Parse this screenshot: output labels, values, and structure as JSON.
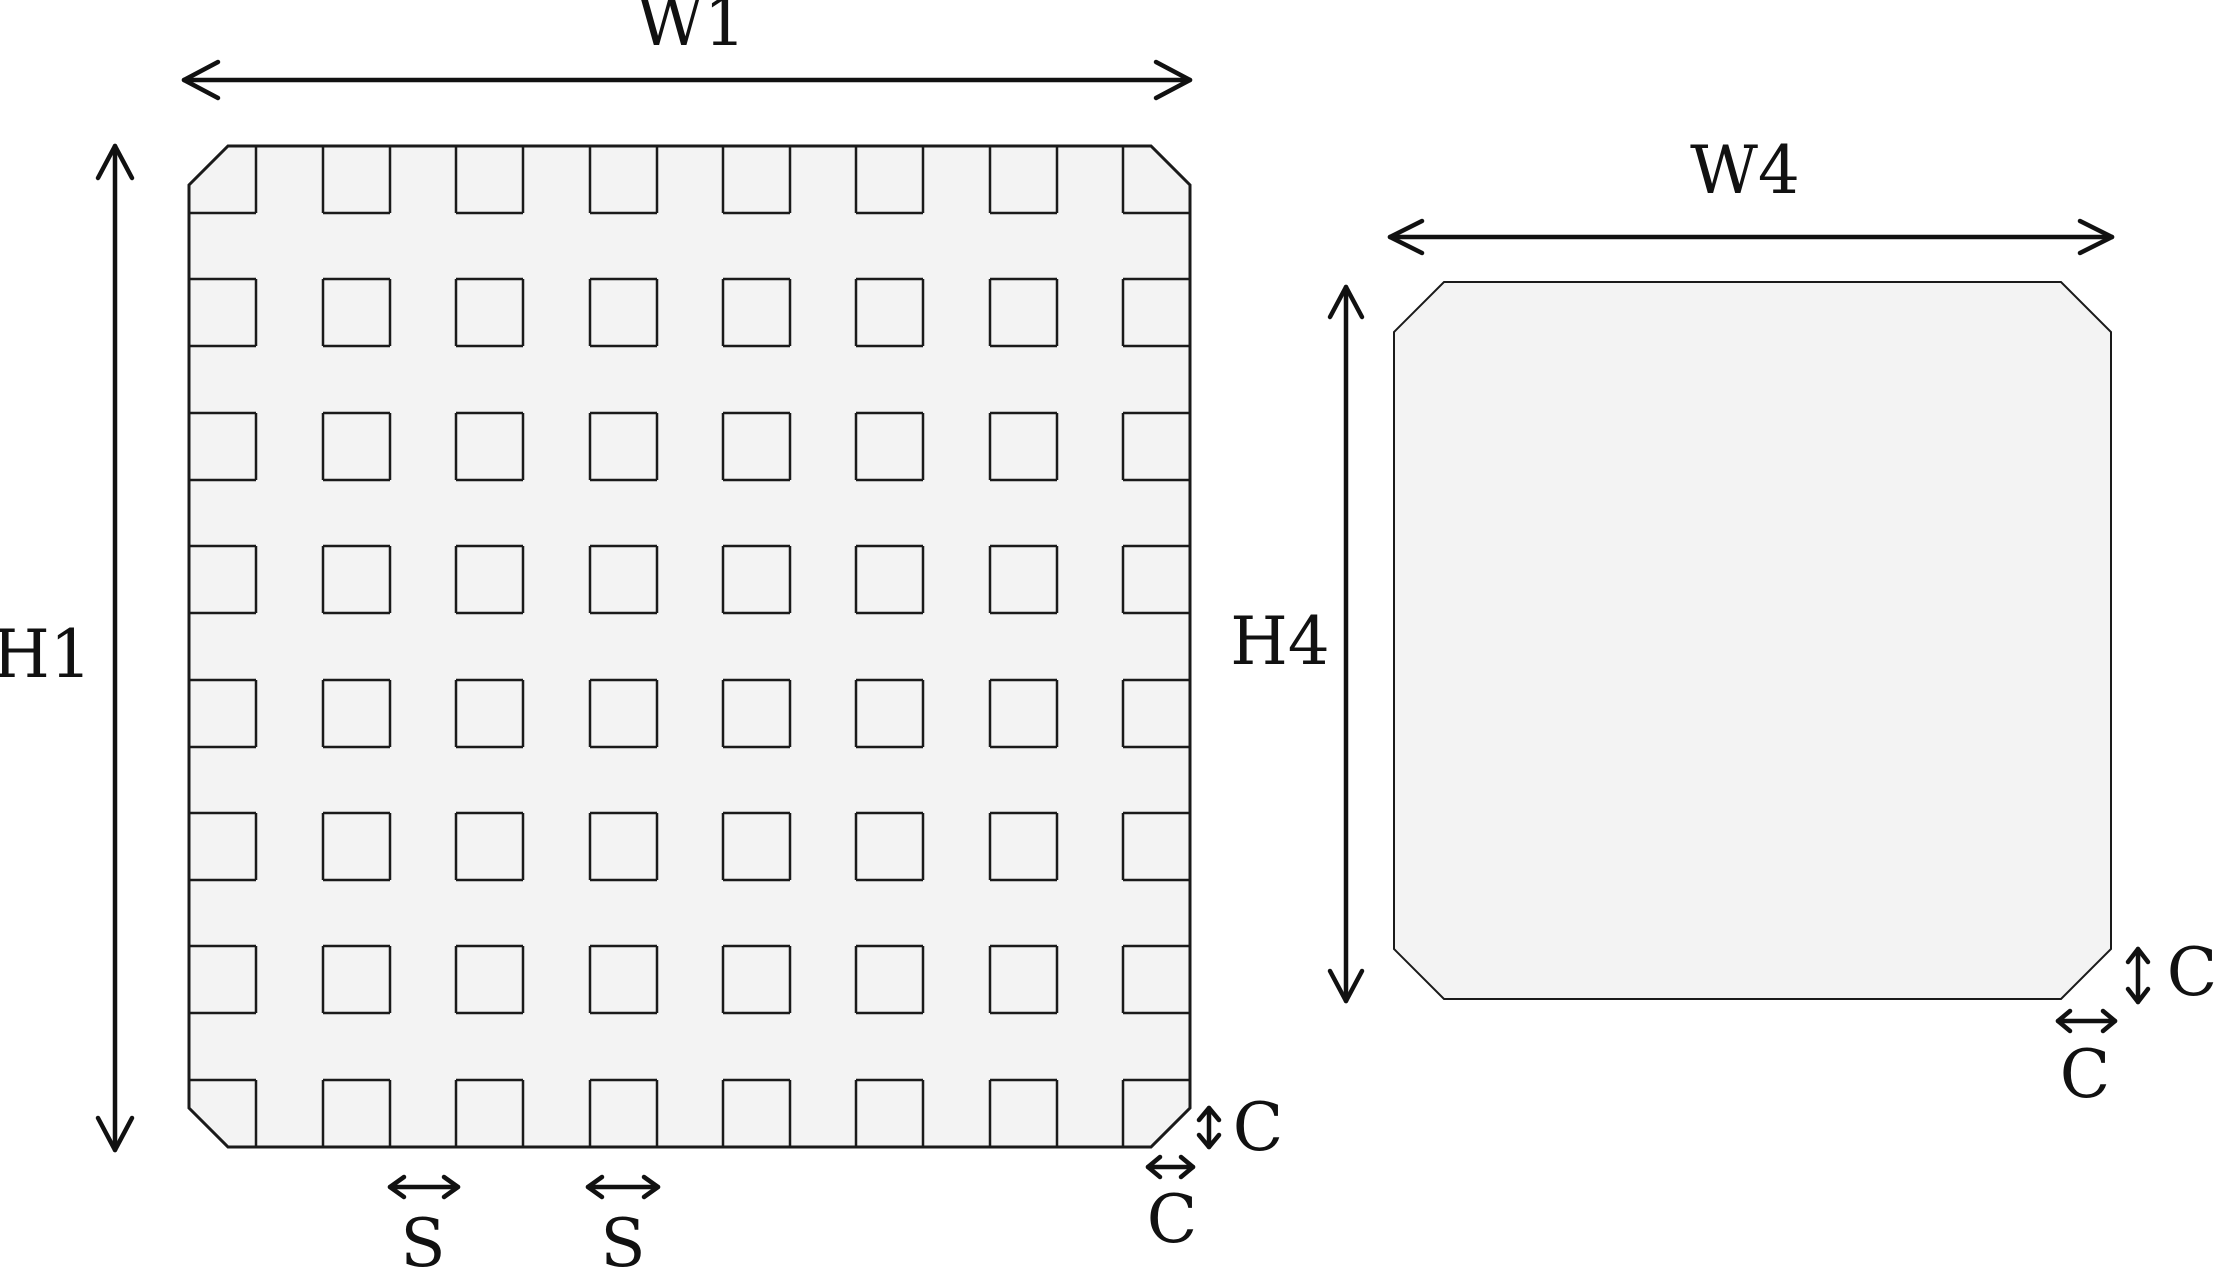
{
  "labels": {
    "left_width": "W1",
    "left_height": "H1",
    "left_spacing_1": "S",
    "left_spacing_2": "S",
    "left_chamfer_vertical": "C",
    "left_chamfer_horizontal": "C",
    "right_width": "W4",
    "right_height": "H4",
    "right_chamfer_vertical": "C",
    "right_chamfer_horizontal": "C"
  },
  "grid": {
    "rows": 8,
    "columns": 8
  },
  "colors": {
    "plate_fill": "#f3f3f3",
    "stroke": "#1a1a1a"
  }
}
